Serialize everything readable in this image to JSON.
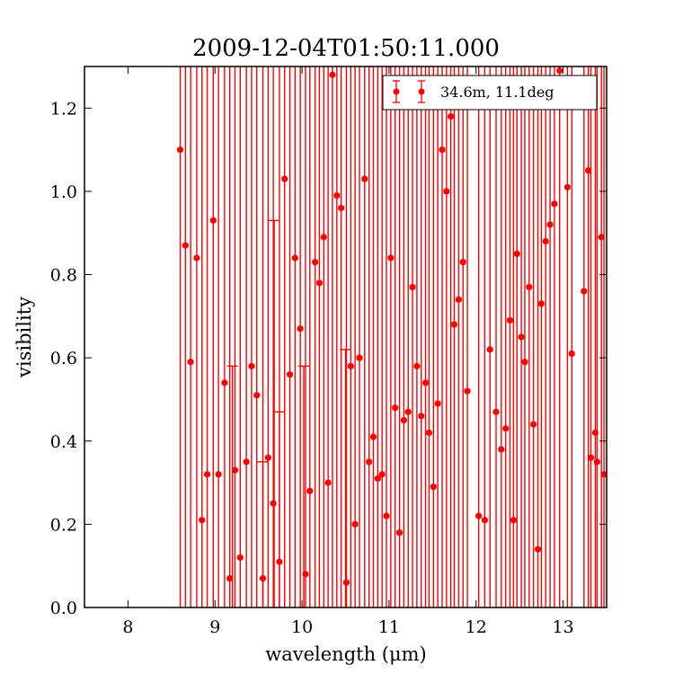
{
  "chart_data": {
    "type": "scatter",
    "title": "2009-12-04T01:50:11.000",
    "xlabel": "wavelength (μm)",
    "ylabel": "visibility",
    "xlim": [
      7.5,
      13.5
    ],
    "ylim": [
      0.0,
      1.3
    ],
    "xticks": [
      "8",
      "9",
      "10",
      "11",
      "12",
      "13"
    ],
    "yticks": [
      "0.0",
      "0.2",
      "0.4",
      "0.6",
      "0.8",
      "1.0",
      "1.2"
    ],
    "grid": false,
    "legend_position": "top-right",
    "color": "#ff0000",
    "series": [
      {
        "name": "34.6m, 11.1deg",
        "x": [
          8.6,
          8.66,
          8.72,
          8.79,
          8.85,
          8.91,
          8.98,
          9.04,
          9.11,
          9.17,
          9.23,
          9.29,
          9.36,
          9.42,
          9.48,
          9.55,
          9.61,
          9.67,
          9.74,
          9.8,
          9.86,
          9.92,
          9.98,
          10.04,
          10.09,
          10.15,
          10.2,
          10.25,
          10.3,
          10.35,
          10.4,
          10.45,
          10.51,
          10.56,
          10.61,
          10.66,
          10.72,
          10.77,
          10.82,
          10.87,
          10.92,
          10.97,
          11.02,
          11.07,
          11.12,
          11.17,
          11.22,
          11.27,
          11.32,
          11.37,
          11.42,
          11.46,
          11.51,
          11.56,
          11.61,
          11.66,
          11.71,
          11.75,
          11.8,
          11.85,
          11.9,
          12.03,
          12.1,
          12.16,
          12.23,
          12.29,
          12.34,
          12.39,
          12.43,
          12.47,
          12.52,
          12.56,
          12.61,
          12.66,
          12.71,
          12.75,
          12.8,
          12.85,
          12.9,
          12.96,
          13.05,
          13.1,
          13.24,
          13.29,
          13.32,
          13.37,
          13.39,
          13.44,
          13.47
        ],
        "values": [
          1.1,
          0.87,
          0.59,
          0.84,
          0.21,
          0.32,
          0.93,
          0.32,
          0.54,
          0.07,
          0.33,
          0.12,
          0.35,
          0.58,
          0.51,
          0.07,
          0.36,
          0.25,
          0.11,
          1.03,
          0.56,
          0.84,
          0.67,
          0.08,
          0.28,
          0.83,
          0.78,
          0.89,
          0.3,
          1.28,
          0.99,
          0.96,
          0.06,
          0.58,
          0.2,
          0.6,
          1.03,
          0.35,
          0.41,
          0.31,
          0.32,
          0.22,
          0.84,
          0.48,
          0.18,
          0.45,
          0.47,
          0.77,
          0.58,
          0.46,
          0.54,
          0.42,
          0.29,
          0.49,
          1.1,
          1.0,
          1.18,
          0.68,
          0.74,
          0.83,
          0.52,
          0.22,
          0.21,
          0.62,
          0.47,
          0.38,
          0.43,
          0.69,
          0.21,
          0.85,
          0.65,
          0.59,
          0.77,
          0.44,
          0.14,
          0.73,
          0.88,
          0.92,
          0.97,
          1.29,
          1.01,
          0.61,
          0.76,
          1.05,
          0.36,
          0.42,
          0.35,
          0.89,
          0.32
        ],
        "open_errorbars": [
          {
            "x": 9.2,
            "lower": 0.0,
            "upper": 0.58
          },
          {
            "x": 9.55,
            "lower": 0.0,
            "upper": 0.35
          },
          {
            "x": 9.68,
            "lower": 0.0,
            "upper": 0.93
          },
          {
            "x": 9.74,
            "lower": 0.0,
            "upper": 0.47
          },
          {
            "x": 10.02,
            "lower": 0.0,
            "upper": 0.58
          },
          {
            "x": 10.5,
            "lower": 0.0,
            "upper": 0.62
          }
        ]
      }
    ]
  }
}
